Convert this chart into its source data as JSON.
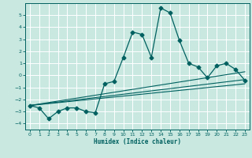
{
  "xlabel": "Humidex (Indice chaleur)",
  "background_color": "#c8e8e0",
  "grid_color": "#ffffff",
  "line_color": "#006060",
  "xlim": [
    -0.5,
    23.5
  ],
  "ylim": [
    -4.5,
    6.0
  ],
  "xticks": [
    0,
    1,
    2,
    3,
    4,
    5,
    6,
    7,
    8,
    9,
    10,
    11,
    12,
    13,
    14,
    15,
    16,
    17,
    18,
    19,
    20,
    21,
    22,
    23
  ],
  "yticks": [
    -4,
    -3,
    -2,
    -1,
    0,
    1,
    2,
    3,
    4,
    5
  ],
  "line1_x": [
    0,
    1,
    2,
    3,
    4,
    5,
    6,
    7,
    8,
    9,
    10,
    11,
    12,
    13,
    14,
    15,
    16,
    17,
    18,
    19,
    20,
    21,
    22,
    23
  ],
  "line1_y": [
    -2.5,
    -2.7,
    -3.6,
    -3.0,
    -2.7,
    -2.7,
    -3.0,
    -3.1,
    -0.7,
    -0.5,
    1.5,
    3.6,
    3.4,
    1.5,
    5.6,
    5.2,
    2.9,
    1.0,
    0.7,
    -0.2,
    0.8,
    1.0,
    0.5,
    -0.4
  ],
  "line2_x": [
    0,
    23
  ],
  "line2_y": [
    -2.5,
    -0.7
  ],
  "line3_x": [
    0,
    23
  ],
  "line3_y": [
    -2.5,
    -0.35
  ],
  "line4_x": [
    0,
    23
  ],
  "line4_y": [
    -2.5,
    0.3
  ]
}
